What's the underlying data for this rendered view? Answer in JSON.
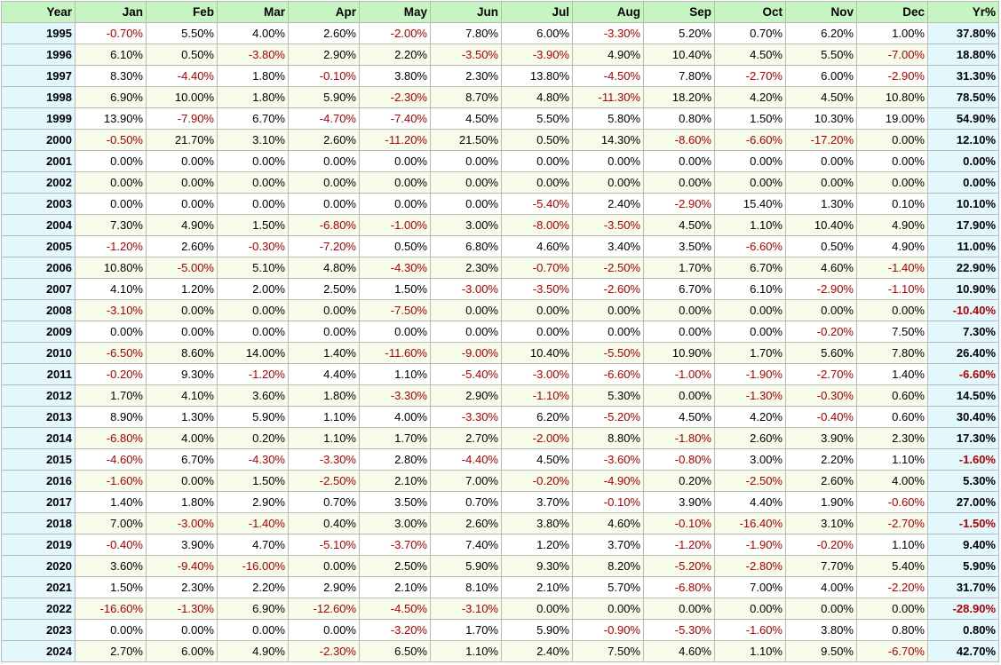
{
  "table": {
    "headers": [
      "Year",
      "Jan",
      "Feb",
      "Mar",
      "Apr",
      "May",
      "Jun",
      "Jul",
      "Aug",
      "Sep",
      "Oct",
      "Nov",
      "Dec",
      "Yr%"
    ],
    "rows": [
      {
        "year": "1995",
        "months": [
          "-0.70%",
          "5.50%",
          "4.00%",
          "2.60%",
          "-2.00%",
          "7.80%",
          "6.00%",
          "-3.30%",
          "5.20%",
          "0.70%",
          "6.20%",
          "1.00%"
        ],
        "yr": "37.80%"
      },
      {
        "year": "1996",
        "months": [
          "6.10%",
          "0.50%",
          "-3.80%",
          "2.90%",
          "2.20%",
          "-3.50%",
          "-3.90%",
          "4.90%",
          "10.40%",
          "4.50%",
          "5.50%",
          "-7.00%"
        ],
        "yr": "18.80%"
      },
      {
        "year": "1997",
        "months": [
          "8.30%",
          "-4.40%",
          "1.80%",
          "-0.10%",
          "3.80%",
          "2.30%",
          "13.80%",
          "-4.50%",
          "7.80%",
          "-2.70%",
          "6.00%",
          "-2.90%"
        ],
        "yr": "31.30%"
      },
      {
        "year": "1998",
        "months": [
          "6.90%",
          "10.00%",
          "1.80%",
          "5.90%",
          "-2.30%",
          "8.70%",
          "4.80%",
          "-11.30%",
          "18.20%",
          "4.20%",
          "4.50%",
          "10.80%"
        ],
        "yr": "78.50%"
      },
      {
        "year": "1999",
        "months": [
          "13.90%",
          "-7.90%",
          "6.70%",
          "-4.70%",
          "-7.40%",
          "4.50%",
          "5.50%",
          "5.80%",
          "0.80%",
          "1.50%",
          "10.30%",
          "19.00%"
        ],
        "yr": "54.90%"
      },
      {
        "year": "2000",
        "months": [
          "-0.50%",
          "21.70%",
          "3.10%",
          "2.60%",
          "-11.20%",
          "21.50%",
          "0.50%",
          "14.30%",
          "-8.60%",
          "-6.60%",
          "-17.20%",
          "0.00%"
        ],
        "yr": "12.10%"
      },
      {
        "year": "2001",
        "months": [
          "0.00%",
          "0.00%",
          "0.00%",
          "0.00%",
          "0.00%",
          "0.00%",
          "0.00%",
          "0.00%",
          "0.00%",
          "0.00%",
          "0.00%",
          "0.00%"
        ],
        "yr": "0.00%"
      },
      {
        "year": "2002",
        "months": [
          "0.00%",
          "0.00%",
          "0.00%",
          "0.00%",
          "0.00%",
          "0.00%",
          "0.00%",
          "0.00%",
          "0.00%",
          "0.00%",
          "0.00%",
          "0.00%"
        ],
        "yr": "0.00%"
      },
      {
        "year": "2003",
        "months": [
          "0.00%",
          "0.00%",
          "0.00%",
          "0.00%",
          "0.00%",
          "0.00%",
          "-5.40%",
          "2.40%",
          "-2.90%",
          "15.40%",
          "1.30%",
          "0.10%"
        ],
        "yr": "10.10%"
      },
      {
        "year": "2004",
        "months": [
          "7.30%",
          "4.90%",
          "1.50%",
          "-6.80%",
          "-1.00%",
          "3.00%",
          "-8.00%",
          "-3.50%",
          "4.50%",
          "1.10%",
          "10.40%",
          "4.90%"
        ],
        "yr": "17.90%"
      },
      {
        "year": "2005",
        "months": [
          "-1.20%",
          "2.60%",
          "-0.30%",
          "-7.20%",
          "0.50%",
          "6.80%",
          "4.60%",
          "3.40%",
          "3.50%",
          "-6.60%",
          "0.50%",
          "4.90%"
        ],
        "yr": "11.00%"
      },
      {
        "year": "2006",
        "months": [
          "10.80%",
          "-5.00%",
          "5.10%",
          "4.80%",
          "-4.30%",
          "2.30%",
          "-0.70%",
          "-2.50%",
          "1.70%",
          "6.70%",
          "4.60%",
          "-1.40%"
        ],
        "yr": "22.90%"
      },
      {
        "year": "2007",
        "months": [
          "4.10%",
          "1.20%",
          "2.00%",
          "2.50%",
          "1.50%",
          "-3.00%",
          "-3.50%",
          "-2.60%",
          "6.70%",
          "6.10%",
          "-2.90%",
          "-1.10%"
        ],
        "yr": "10.90%"
      },
      {
        "year": "2008",
        "months": [
          "-3.10%",
          "0.00%",
          "0.00%",
          "0.00%",
          "-7.50%",
          "0.00%",
          "0.00%",
          "0.00%",
          "0.00%",
          "0.00%",
          "0.00%",
          "0.00%"
        ],
        "yr": "-10.40%"
      },
      {
        "year": "2009",
        "months": [
          "0.00%",
          "0.00%",
          "0.00%",
          "0.00%",
          "0.00%",
          "0.00%",
          "0.00%",
          "0.00%",
          "0.00%",
          "0.00%",
          "-0.20%",
          "7.50%"
        ],
        "yr": "7.30%"
      },
      {
        "year": "2010",
        "months": [
          "-6.50%",
          "8.60%",
          "14.00%",
          "1.40%",
          "-11.60%",
          "-9.00%",
          "10.40%",
          "-5.50%",
          "10.90%",
          "1.70%",
          "5.60%",
          "7.80%"
        ],
        "yr": "26.40%"
      },
      {
        "year": "2011",
        "months": [
          "-0.20%",
          "9.30%",
          "-1.20%",
          "4.40%",
          "1.10%",
          "-5.40%",
          "-3.00%",
          "-6.60%",
          "-1.00%",
          "-1.90%",
          "-2.70%",
          "1.40%"
        ],
        "yr": "-6.60%"
      },
      {
        "year": "2012",
        "months": [
          "1.70%",
          "4.10%",
          "3.60%",
          "1.80%",
          "-3.30%",
          "2.90%",
          "-1.10%",
          "5.30%",
          "0.00%",
          "-1.30%",
          "-0.30%",
          "0.60%"
        ],
        "yr": "14.50%"
      },
      {
        "year": "2013",
        "months": [
          "8.90%",
          "1.30%",
          "5.90%",
          "1.10%",
          "4.00%",
          "-3.30%",
          "6.20%",
          "-5.20%",
          "4.50%",
          "4.20%",
          "-0.40%",
          "0.60%"
        ],
        "yr": "30.40%"
      },
      {
        "year": "2014",
        "months": [
          "-6.80%",
          "4.00%",
          "0.20%",
          "1.10%",
          "1.70%",
          "2.70%",
          "-2.00%",
          "8.80%",
          "-1.80%",
          "2.60%",
          "3.90%",
          "2.30%"
        ],
        "yr": "17.30%"
      },
      {
        "year": "2015",
        "months": [
          "-4.60%",
          "6.70%",
          "-4.30%",
          "-3.30%",
          "2.80%",
          "-4.40%",
          "4.50%",
          "-3.60%",
          "-0.80%",
          "3.00%",
          "2.20%",
          "1.10%"
        ],
        "yr": "-1.60%"
      },
      {
        "year": "2016",
        "months": [
          "-1.60%",
          "0.00%",
          "1.50%",
          "-2.50%",
          "2.10%",
          "7.00%",
          "-0.20%",
          "-4.90%",
          "0.20%",
          "-2.50%",
          "2.60%",
          "4.00%"
        ],
        "yr": "5.30%"
      },
      {
        "year": "2017",
        "months": [
          "1.40%",
          "1.80%",
          "2.90%",
          "0.70%",
          "3.50%",
          "0.70%",
          "3.70%",
          "-0.10%",
          "3.90%",
          "4.40%",
          "1.90%",
          "-0.60%"
        ],
        "yr": "27.00%"
      },
      {
        "year": "2018",
        "months": [
          "7.00%",
          "-3.00%",
          "-1.40%",
          "0.40%",
          "3.00%",
          "2.60%",
          "3.80%",
          "4.60%",
          "-0.10%",
          "-16.40%",
          "3.10%",
          "-2.70%"
        ],
        "yr": "-1.50%"
      },
      {
        "year": "2019",
        "months": [
          "-0.40%",
          "3.90%",
          "4.70%",
          "-5.10%",
          "-3.70%",
          "7.40%",
          "1.20%",
          "3.70%",
          "-1.20%",
          "-1.90%",
          "-0.20%",
          "1.10%"
        ],
        "yr": "9.40%"
      },
      {
        "year": "2020",
        "months": [
          "3.60%",
          "-9.40%",
          "-16.00%",
          "0.00%",
          "2.50%",
          "5.90%",
          "9.30%",
          "8.20%",
          "-5.20%",
          "-2.80%",
          "7.70%",
          "5.40%"
        ],
        "yr": "5.90%"
      },
      {
        "year": "2021",
        "months": [
          "1.50%",
          "2.30%",
          "2.20%",
          "2.90%",
          "2.10%",
          "8.10%",
          "2.10%",
          "5.70%",
          "-6.80%",
          "7.00%",
          "4.00%",
          "-2.20%"
        ],
        "yr": "31.70%"
      },
      {
        "year": "2022",
        "months": [
          "-16.60%",
          "-1.30%",
          "6.90%",
          "-12.60%",
          "-4.50%",
          "-3.10%",
          "0.00%",
          "0.00%",
          "0.00%",
          "0.00%",
          "0.00%",
          "0.00%"
        ],
        "yr": "-28.90%"
      },
      {
        "year": "2023",
        "months": [
          "0.00%",
          "0.00%",
          "0.00%",
          "0.00%",
          "-3.20%",
          "1.70%",
          "5.90%",
          "-0.90%",
          "-5.30%",
          "-1.60%",
          "3.80%",
          "0.80%"
        ],
        "yr": "0.80%"
      },
      {
        "year": "2024",
        "months": [
          "2.70%",
          "6.00%",
          "4.90%",
          "-2.30%",
          "6.50%",
          "1.10%",
          "2.40%",
          "7.50%",
          "4.60%",
          "1.10%",
          "9.50%",
          "-6.70%"
        ],
        "yr": "42.70%"
      }
    ]
  },
  "colors": {
    "header_bg": "#c6f4c2",
    "year_bg": "#e3f8fc",
    "row_alt_bg": "#f7fbea",
    "negative_text": "#b00000",
    "border": "#b9b9b9"
  },
  "chart_data": {
    "type": "table",
    "columns": [
      "Year",
      "Jan",
      "Feb",
      "Mar",
      "Apr",
      "May",
      "Jun",
      "Jul",
      "Aug",
      "Sep",
      "Oct",
      "Nov",
      "Dec",
      "Yr%"
    ],
    "units": "percent"
  }
}
